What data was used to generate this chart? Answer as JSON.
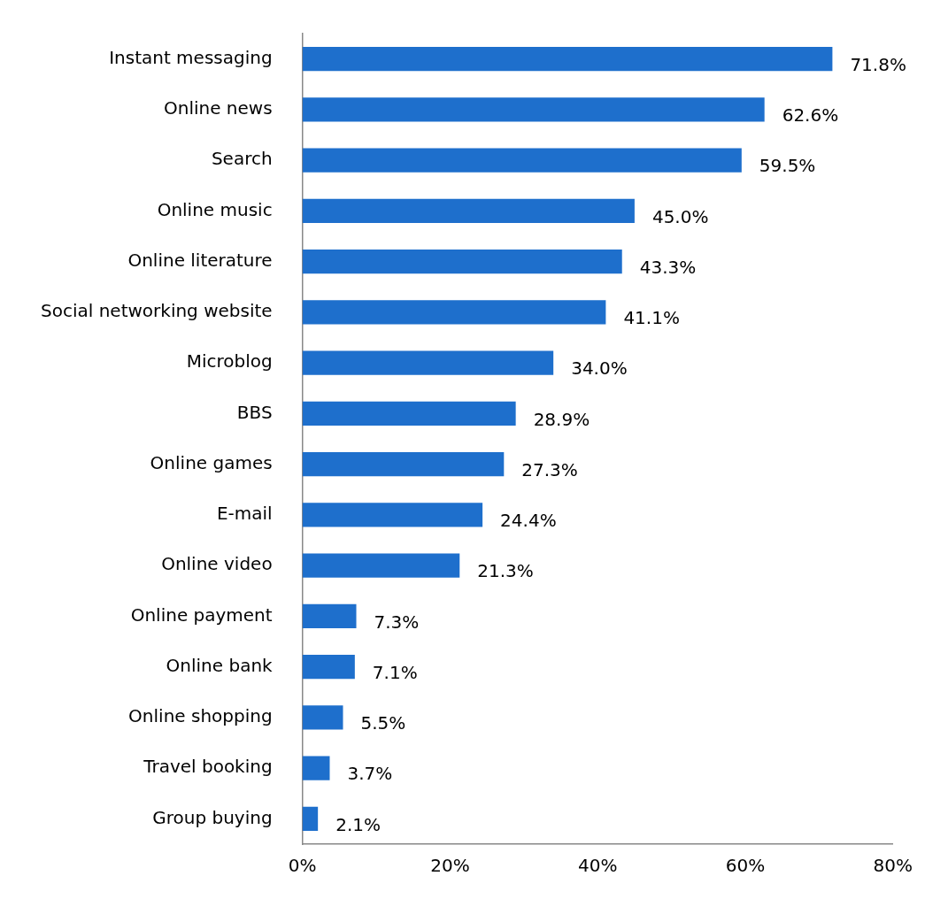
{
  "chart_data": {
    "type": "bar",
    "orientation": "horizontal",
    "categories": [
      "Instant messaging",
      "Online news",
      "Search",
      "Online music",
      "Online literature",
      "Social networking website",
      "Microblog",
      "BBS",
      "Online games",
      "E-mail",
      "Online video",
      "Online payment",
      "Online bank",
      "Online shopping",
      "Travel booking",
      "Group buying"
    ],
    "values": [
      71.8,
      62.6,
      59.5,
      45.0,
      43.3,
      41.1,
      34.0,
      28.9,
      27.3,
      24.4,
      21.3,
      7.3,
      7.1,
      5.5,
      3.7,
      2.1
    ],
    "value_labels": [
      "71.8%",
      "62.6%",
      "59.5%",
      "45.0%",
      "43.3%",
      "41.1%",
      "34.0%",
      "28.9%",
      "27.3%",
      "24.4%",
      "21.3%",
      "7.3%",
      "7.1%",
      "5.5%",
      "3.7%",
      "2.1%"
    ],
    "color": "#1e6fcc",
    "xlim": [
      0,
      80
    ],
    "xticks": [
      {
        "value": 0,
        "label": "0%"
      },
      {
        "value": 20,
        "label": "20%"
      },
      {
        "value": 40,
        "label": "40%"
      },
      {
        "value": 60,
        "label": "60%"
      },
      {
        "value": 80,
        "label": "80%"
      }
    ]
  }
}
